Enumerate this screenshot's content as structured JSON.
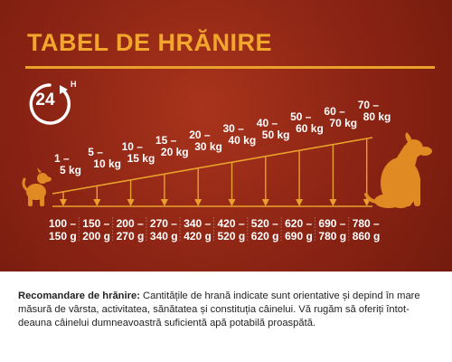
{
  "title": "TABEL DE HRĂNIRE",
  "badge": {
    "number": "24",
    "unit": "H"
  },
  "weights": [
    {
      "top": "1 –",
      "bottom": "5 kg"
    },
    {
      "top": "5 –",
      "bottom": "10 kg"
    },
    {
      "top": "10 –",
      "bottom": "15 kg"
    },
    {
      "top": "15 –",
      "bottom": "20 kg"
    },
    {
      "top": "20 –",
      "bottom": "30 kg"
    },
    {
      "top": "30 –",
      "bottom": "40 kg"
    },
    {
      "top": "40 –",
      "bottom": "50 kg"
    },
    {
      "top": "50 –",
      "bottom": "60 kg"
    },
    {
      "top": "60 –",
      "bottom": "70 kg"
    },
    {
      "top": "70 –",
      "bottom": "80 kg"
    }
  ],
  "portions": [
    {
      "top": "100 –",
      "bottom": "150 g"
    },
    {
      "top": "150 –",
      "bottom": "200 g"
    },
    {
      "top": "200 –",
      "bottom": "270 g"
    },
    {
      "top": "270 –",
      "bottom": "340 g"
    },
    {
      "top": "340 –",
      "bottom": "420 g"
    },
    {
      "top": "420 –",
      "bottom": "520 g"
    },
    {
      "top": "520 –",
      "bottom": "620 g"
    },
    {
      "top": "620 –",
      "bottom": "690 g"
    },
    {
      "top": "690 –",
      "bottom": "780 g"
    },
    {
      "top": "780 –",
      "bottom": "860 g"
    }
  ],
  "recommendation": {
    "label": "Recomandare de hrănire:",
    "text": "Cantitățile de hrană indicate sunt orientative și depind în mare măsură de vârsta, activitatea, sănătatea și constituția câinelui. Vă rugăm să oferiți întot-deauna câinelui dumneavoastră suficientă apă potabilă proaspătă."
  },
  "colors": {
    "accent": "#f2a72c",
    "line": "#e9a12c",
    "dog": "#e08a24",
    "background": "#8c2414"
  },
  "icons": {
    "badge": "24h-clock-icon",
    "small_dog": "small-dog-icon",
    "large_dog": "large-dog-icon"
  }
}
